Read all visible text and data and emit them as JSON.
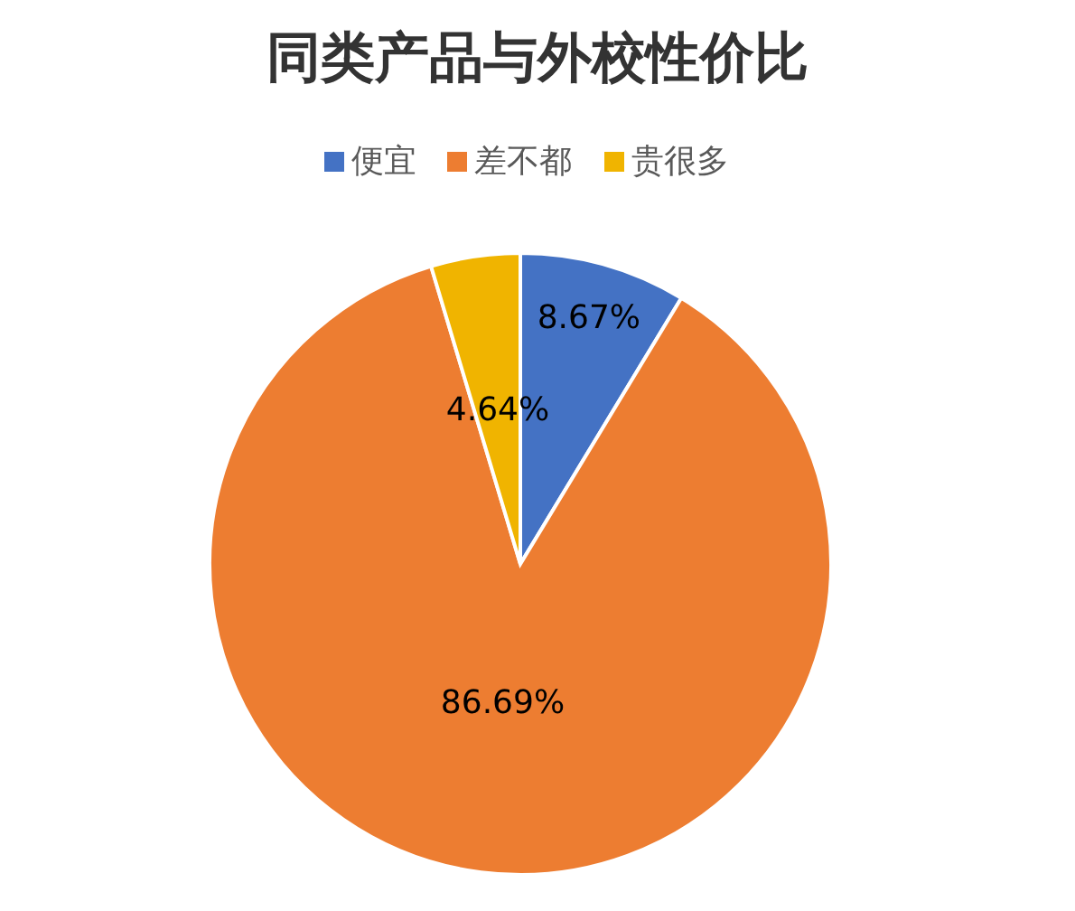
{
  "chart_data": {
    "type": "pie",
    "title": "同类产品与外校性价比",
    "categories": [
      "便宜",
      "差不都",
      "贵很多"
    ],
    "values": [
      8.67,
      86.69,
      4.64
    ],
    "colors": [
      "#4472c4",
      "#ed7d31",
      "#f0b400"
    ],
    "value_labels": [
      "8.67%",
      "86.69%",
      "4.64%"
    ],
    "legend": "top"
  }
}
